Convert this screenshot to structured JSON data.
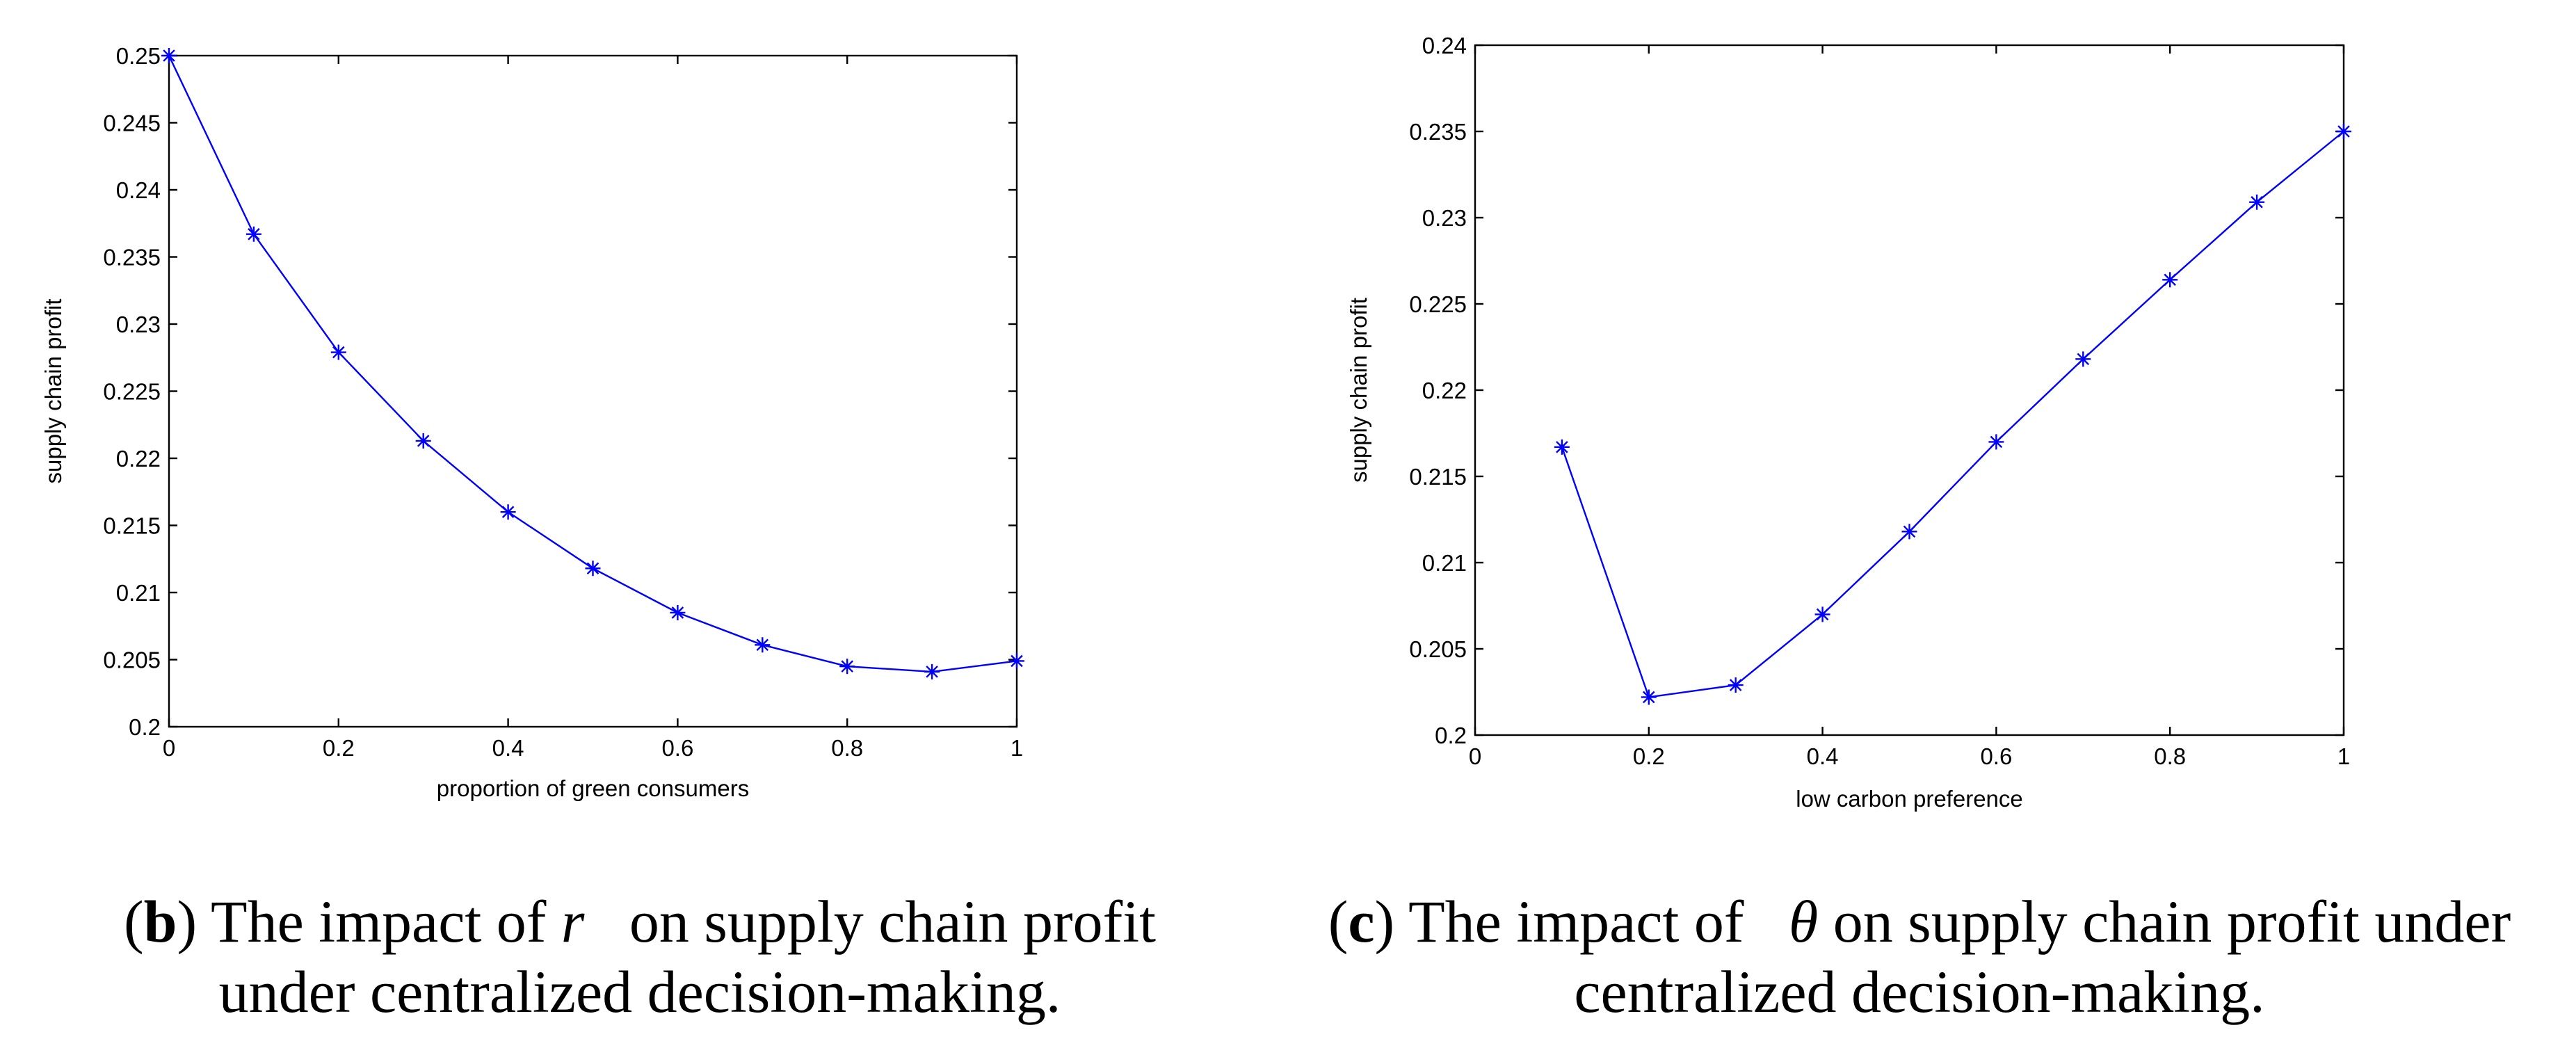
{
  "chart_data": [
    {
      "type": "line",
      "panel": "b",
      "xlabel": "proportion of green consumers",
      "ylabel": "supply chain profit",
      "xlim": [
        0,
        1
      ],
      "ylim": [
        0.2,
        0.25
      ],
      "xticks": [
        "0",
        "0.2",
        "0.4",
        "0.6",
        "0.8",
        "1"
      ],
      "yticks": [
        "0.2",
        "0.205",
        "0.21",
        "0.215",
        "0.22",
        "0.225",
        "0.23",
        "0.235",
        "0.24",
        "0.245",
        "0.25"
      ],
      "series": [
        {
          "name": "supply chain profit",
          "color": "#0000ff",
          "marker": "asterisk",
          "x": [
            0,
            0.1,
            0.2,
            0.3,
            0.4,
            0.5,
            0.6,
            0.7,
            0.8,
            0.9,
            1.0
          ],
          "y": [
            0.25,
            0.2367,
            0.2279,
            0.2213,
            0.216,
            0.2118,
            0.2085,
            0.2061,
            0.2045,
            0.2041,
            0.2049
          ]
        }
      ]
    },
    {
      "type": "line",
      "panel": "c",
      "xlabel": "low carbon preference",
      "ylabel": "supply chain profit",
      "xlim": [
        0,
        1
      ],
      "ylim": [
        0.2,
        0.24
      ],
      "xticks": [
        "0",
        "0.2",
        "0.4",
        "0.6",
        "0.8",
        "1"
      ],
      "yticks": [
        "0.2",
        "0.205",
        "0.21",
        "0.215",
        "0.22",
        "0.225",
        "0.23",
        "0.235",
        "0.24"
      ],
      "series": [
        {
          "name": "supply chain profit",
          "color": "#0000ff",
          "marker": "asterisk",
          "x": [
            0.1,
            0.2,
            0.3,
            0.4,
            0.5,
            0.6,
            0.7,
            0.8,
            0.9,
            1.0
          ],
          "y": [
            0.2167,
            0.2022,
            0.2029,
            0.207,
            0.2118,
            0.217,
            0.2218,
            0.2264,
            0.2309,
            0.235
          ]
        }
      ]
    }
  ],
  "captions": {
    "b": {
      "letter": "b",
      "text_before": "The impact of ",
      "symbol": "r",
      "text_after": "   on supply chain profit",
      "line2": "under centralized decision-making."
    },
    "c": {
      "letter": "c",
      "text_before": "The impact of   ",
      "symbol": "θ",
      "text_after": " on supply chain profit under",
      "line2": "centralized decision-making."
    }
  }
}
